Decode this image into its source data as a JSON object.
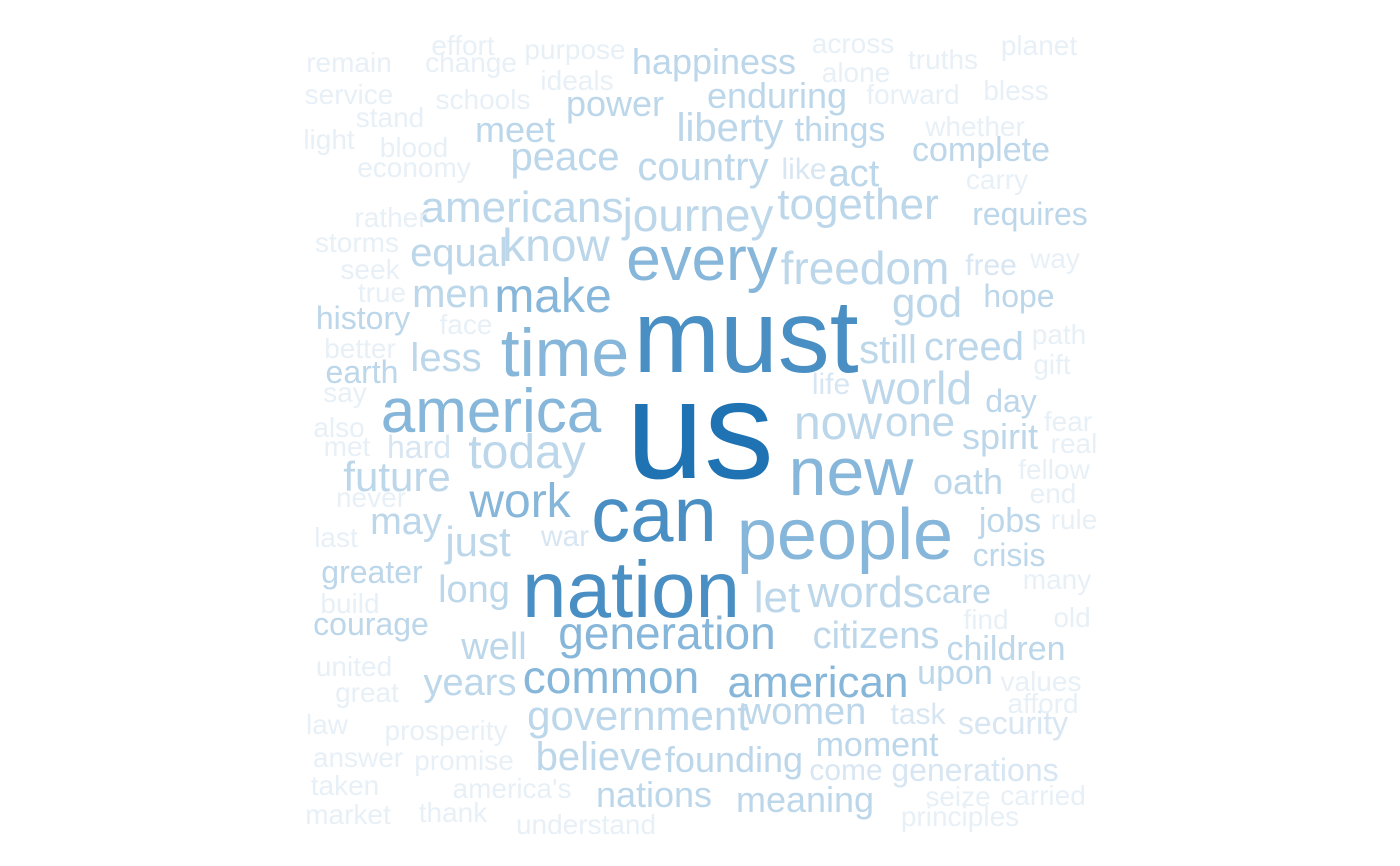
{
  "palette": {
    "darkest": "#1f73b3",
    "dark": "#4a8fc3",
    "mid": "#86b6d9",
    "light": "#bcd6ea",
    "lighter": "#d7e6f2",
    "lightest": "#e8f0f7"
  },
  "words": [
    {
      "text": "us",
      "tone": "darkest"
    },
    {
      "text": "must",
      "tone": "dark"
    },
    {
      "text": "nation",
      "tone": "dark"
    },
    {
      "text": "can",
      "tone": "dark"
    },
    {
      "text": "people",
      "tone": "mid"
    },
    {
      "text": "new",
      "tone": "mid"
    },
    {
      "text": "time",
      "tone": "mid"
    },
    {
      "text": "every",
      "tone": "mid"
    },
    {
      "text": "america",
      "tone": "mid"
    },
    {
      "text": "make",
      "tone": "mid"
    },
    {
      "text": "today",
      "tone": "light"
    },
    {
      "text": "work",
      "tone": "mid"
    },
    {
      "text": "generation",
      "tone": "mid"
    },
    {
      "text": "common",
      "tone": "mid"
    },
    {
      "text": "american",
      "tone": "mid"
    },
    {
      "text": "government",
      "tone": "light"
    },
    {
      "text": "now",
      "tone": "light"
    },
    {
      "text": "one",
      "tone": "light"
    },
    {
      "text": "world",
      "tone": "light"
    },
    {
      "text": "freedom",
      "tone": "light"
    },
    {
      "text": "journey",
      "tone": "light"
    },
    {
      "text": "know",
      "tone": "light"
    },
    {
      "text": "let",
      "tone": "light"
    },
    {
      "text": "words",
      "tone": "light"
    },
    {
      "text": "citizens",
      "tone": "light"
    },
    {
      "text": "believe",
      "tone": "light"
    },
    {
      "text": "founding",
      "tone": "light"
    },
    {
      "text": "women",
      "tone": "light"
    },
    {
      "text": "moment",
      "tone": "light"
    },
    {
      "text": "meaning",
      "tone": "light"
    },
    {
      "text": "nations",
      "tone": "light"
    },
    {
      "text": "years",
      "tone": "light"
    },
    {
      "text": "well",
      "tone": "light"
    },
    {
      "text": "long",
      "tone": "light"
    },
    {
      "text": "just",
      "tone": "light"
    },
    {
      "text": "may",
      "tone": "light"
    },
    {
      "text": "future",
      "tone": "light"
    },
    {
      "text": "less",
      "tone": "light"
    },
    {
      "text": "men",
      "tone": "light"
    },
    {
      "text": "equal",
      "tone": "light"
    },
    {
      "text": "americans",
      "tone": "light"
    },
    {
      "text": "peace",
      "tone": "light"
    },
    {
      "text": "meet",
      "tone": "light"
    },
    {
      "text": "power",
      "tone": "light"
    },
    {
      "text": "liberty",
      "tone": "light"
    },
    {
      "text": "country",
      "tone": "light"
    },
    {
      "text": "together",
      "tone": "light"
    },
    {
      "text": "god",
      "tone": "light"
    },
    {
      "text": "still",
      "tone": "light"
    },
    {
      "text": "creed",
      "tone": "light"
    },
    {
      "text": "spirit",
      "tone": "light"
    },
    {
      "text": "oath",
      "tone": "light"
    },
    {
      "text": "jobs",
      "tone": "light"
    },
    {
      "text": "crisis",
      "tone": "light"
    },
    {
      "text": "care",
      "tone": "light"
    },
    {
      "text": "children",
      "tone": "light"
    },
    {
      "text": "upon",
      "tone": "light"
    },
    {
      "text": "security",
      "tone": "lighter"
    },
    {
      "text": "task",
      "tone": "lighter"
    },
    {
      "text": "come",
      "tone": "lighter"
    },
    {
      "text": "generations",
      "tone": "lighter"
    },
    {
      "text": "happiness",
      "tone": "light"
    },
    {
      "text": "enduring",
      "tone": "light"
    },
    {
      "text": "things",
      "tone": "light"
    },
    {
      "text": "act",
      "tone": "light"
    },
    {
      "text": "complete",
      "tone": "light"
    },
    {
      "text": "requires",
      "tone": "light"
    },
    {
      "text": "hope",
      "tone": "light"
    },
    {
      "text": "history",
      "tone": "light"
    },
    {
      "text": "earth",
      "tone": "light"
    },
    {
      "text": "greater",
      "tone": "light"
    },
    {
      "text": "courage",
      "tone": "light"
    },
    {
      "text": "day",
      "tone": "light"
    },
    {
      "text": "free",
      "tone": "lighter"
    },
    {
      "text": "war",
      "tone": "lighter"
    },
    {
      "text": "life",
      "tone": "lighter"
    },
    {
      "text": "like",
      "tone": "lighter"
    },
    {
      "text": "effort",
      "tone": "lightest"
    },
    {
      "text": "purpose",
      "tone": "lightest"
    },
    {
      "text": "remain",
      "tone": "lightest"
    },
    {
      "text": "change",
      "tone": "lightest"
    },
    {
      "text": "ideals",
      "tone": "lightest"
    },
    {
      "text": "across",
      "tone": "lightest"
    },
    {
      "text": "alone",
      "tone": "lightest"
    },
    {
      "text": "truths",
      "tone": "lightest"
    },
    {
      "text": "planet",
      "tone": "lightest"
    },
    {
      "text": "service",
      "tone": "lightest"
    },
    {
      "text": "schools",
      "tone": "lightest"
    },
    {
      "text": "forward",
      "tone": "lightest"
    },
    {
      "text": "bless",
      "tone": "lightest"
    },
    {
      "text": "stand",
      "tone": "lightest"
    },
    {
      "text": "whether",
      "tone": "lightest"
    },
    {
      "text": "light",
      "tone": "lightest"
    },
    {
      "text": "blood",
      "tone": "lightest"
    },
    {
      "text": "economy",
      "tone": "lightest"
    },
    {
      "text": "carry",
      "tone": "lightest"
    },
    {
      "text": "rather",
      "tone": "lightest"
    },
    {
      "text": "storms",
      "tone": "lightest"
    },
    {
      "text": "way",
      "tone": "lightest"
    },
    {
      "text": "seek",
      "tone": "lightest"
    },
    {
      "text": "true",
      "tone": "lightest"
    },
    {
      "text": "face",
      "tone": "lightest"
    },
    {
      "text": "path",
      "tone": "lightest"
    },
    {
      "text": "better",
      "tone": "lightest"
    },
    {
      "text": "gift",
      "tone": "lightest"
    },
    {
      "text": "say",
      "tone": "lightest"
    },
    {
      "text": "also",
      "tone": "lightest"
    },
    {
      "text": "fear",
      "tone": "lightest"
    },
    {
      "text": "hard",
      "tone": "lighter"
    },
    {
      "text": "met",
      "tone": "lightest"
    },
    {
      "text": "real",
      "tone": "lightest"
    },
    {
      "text": "fellow",
      "tone": "lightest"
    },
    {
      "text": "never",
      "tone": "lightest"
    },
    {
      "text": "end",
      "tone": "lightest"
    },
    {
      "text": "rule",
      "tone": "lightest"
    },
    {
      "text": "last",
      "tone": "lightest"
    },
    {
      "text": "many",
      "tone": "lightest"
    },
    {
      "text": "build",
      "tone": "lightest"
    },
    {
      "text": "find",
      "tone": "lightest"
    },
    {
      "text": "old",
      "tone": "lightest"
    },
    {
      "text": "united",
      "tone": "lightest"
    },
    {
      "text": "great",
      "tone": "lightest"
    },
    {
      "text": "values",
      "tone": "lightest"
    },
    {
      "text": "afford",
      "tone": "lightest"
    },
    {
      "text": "law",
      "tone": "lightest"
    },
    {
      "text": "prosperity",
      "tone": "lightest"
    },
    {
      "text": "answer",
      "tone": "lightest"
    },
    {
      "text": "promise",
      "tone": "lightest"
    },
    {
      "text": "taken",
      "tone": "lightest"
    },
    {
      "text": "america's",
      "tone": "lightest"
    },
    {
      "text": "seize",
      "tone": "lightest"
    },
    {
      "text": "carried",
      "tone": "lightest"
    },
    {
      "text": "market",
      "tone": "lightest"
    },
    {
      "text": "thank",
      "tone": "lightest"
    },
    {
      "text": "understand",
      "tone": "lightest"
    },
    {
      "text": "principles",
      "tone": "lightest"
    }
  ]
}
